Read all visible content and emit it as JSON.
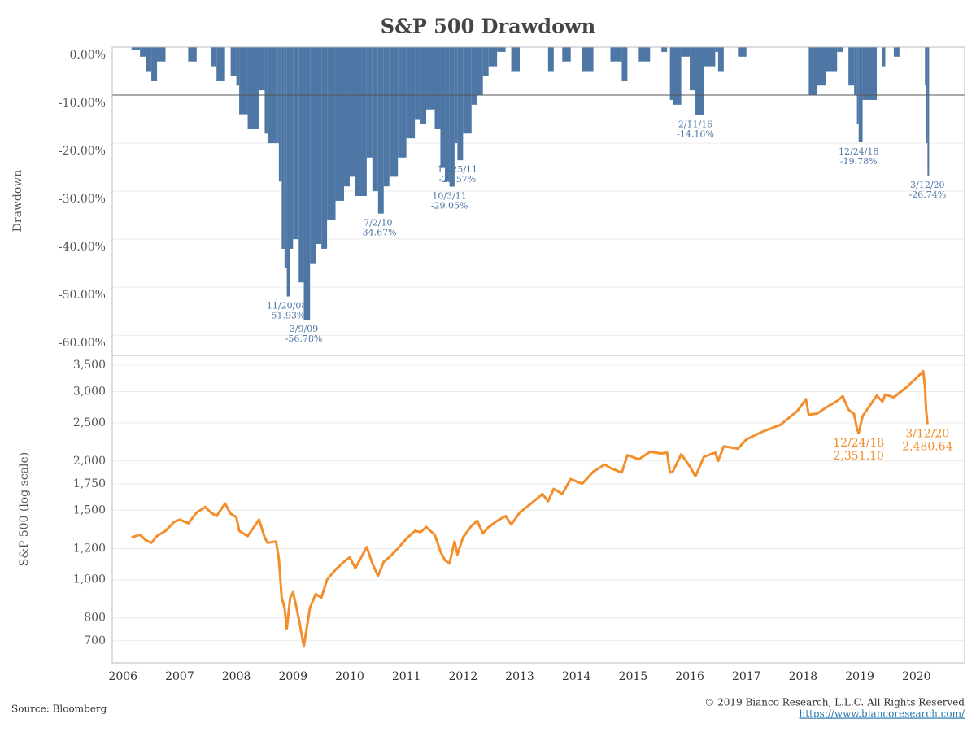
{
  "chart_data": [
    {
      "type": "bar",
      "title": "S&P 500 Drawdown",
      "y_label": "Drawdown",
      "color": "#4e77a5",
      "xlim": [
        2005.81,
        2020.85
      ],
      "ylim": [
        -64.2,
        0
      ],
      "reference_line": -10,
      "grid": true,
      "yticks": [
        {
          "value": 0,
          "label": "0.00%"
        },
        {
          "value": -10,
          "label": "-10.00%"
        },
        {
          "value": -20,
          "label": "-20.00%"
        },
        {
          "value": -30,
          "label": "-30.00%"
        },
        {
          "value": -40,
          "label": "-40.00%"
        },
        {
          "value": -50,
          "label": "-50.00%"
        },
        {
          "value": -60,
          "label": "-60.00%"
        }
      ],
      "x": [
        2006.15,
        2006.3,
        2006.4,
        2006.5,
        2006.6,
        2006.75,
        2006.9,
        2007.0,
        2007.15,
        2007.3,
        2007.45,
        2007.55,
        2007.65,
        2007.8,
        2007.9,
        2008.0,
        2008.05,
        2008.2,
        2008.4,
        2008.5,
        2008.55,
        2008.7,
        2008.75,
        2008.8,
        2008.85,
        2008.89,
        2008.95,
        2009.0,
        2009.1,
        2009.19,
        2009.3,
        2009.4,
        2009.5,
        2009.6,
        2009.75,
        2009.9,
        2010.0,
        2010.1,
        2010.3,
        2010.4,
        2010.5,
        2010.6,
        2010.7,
        2010.85,
        2011.0,
        2011.15,
        2011.25,
        2011.35,
        2011.5,
        2011.6,
        2011.68,
        2011.76,
        2011.85,
        2011.9,
        2012.0,
        2012.15,
        2012.25,
        2012.35,
        2012.45,
        2012.6,
        2012.75,
        2012.85,
        2013.0,
        2013.2,
        2013.4,
        2013.5,
        2013.6,
        2013.75,
        2013.9,
        2014.1,
        2014.3,
        2014.5,
        2014.6,
        2014.8,
        2014.9,
        2015.1,
        2015.3,
        2015.5,
        2015.6,
        2015.65,
        2015.7,
        2015.85,
        2016.0,
        2016.1,
        2016.25,
        2016.45,
        2016.5,
        2016.6,
        2016.85,
        2017.0,
        2017.3,
        2017.6,
        2017.9,
        2018.05,
        2018.1,
        2018.25,
        2018.4,
        2018.6,
        2018.7,
        2018.8,
        2018.9,
        2018.95,
        2018.98,
        2019.05,
        2019.3,
        2019.4,
        2019.45,
        2019.6,
        2019.7,
        2019.85,
        2020.0,
        2020.12,
        2020.15,
        2020.17,
        2020.195
      ],
      "values": [
        -0.5,
        -2,
        -5,
        -7,
        -3,
        0,
        0,
        0,
        -3,
        0,
        0,
        -4,
        -7,
        0,
        -6,
        -8,
        -14,
        -17,
        -9,
        -18,
        -20,
        -20,
        -28,
        -42,
        -46,
        -51.93,
        -42,
        -40,
        -49,
        -56.78,
        -45,
        -41,
        -42,
        -36,
        -32,
        -29,
        -27,
        -31,
        -23,
        -30,
        -34.67,
        -29,
        -27,
        -23,
        -19,
        -15,
        -16,
        -13,
        -17,
        -25,
        -28,
        -29.05,
        -20,
        -23.57,
        -18,
        -12,
        -10,
        -6,
        -4,
        -1,
        0,
        -5,
        0,
        0,
        0,
        -5,
        0,
        -3,
        0,
        -5,
        0,
        0,
        -3,
        -7,
        0,
        -3,
        0,
        -1,
        0,
        -11,
        -12,
        -2,
        -9,
        -14.16,
        -4,
        -1,
        -5,
        0,
        -2,
        0,
        0,
        0,
        0,
        0,
        -10,
        -8,
        -5,
        -1,
        0,
        -8,
        -10,
        -16,
        -19.78,
        -11,
        0,
        -4,
        0,
        -2,
        0,
        0,
        0,
        0,
        -8,
        -20,
        -26.74
      ],
      "annotations": [
        {
          "x": 2008.89,
          "y": -51.93,
          "date": "11/20/08",
          "label": "-51.93%"
        },
        {
          "x": 2009.19,
          "y": -56.78,
          "date": "3/9/09",
          "label": "-56.78%"
        },
        {
          "x": 2010.5,
          "y": -34.67,
          "date": "7/2/10",
          "label": "-34.67%"
        },
        {
          "x": 2011.76,
          "y": -29.05,
          "date": "10/3/11",
          "label": "-29.05%"
        },
        {
          "x": 2011.9,
          "y": -23.57,
          "date": "11/25/11",
          "label": "-23.57%"
        },
        {
          "x": 2016.1,
          "y": -14.16,
          "date": "2/11/16",
          "label": "-14.16%"
        },
        {
          "x": 2018.98,
          "y": -19.78,
          "date": "12/24/18",
          "label": "-19.78%"
        },
        {
          "x": 2020.195,
          "y": -26.74,
          "date": "3/12/20",
          "label": "-26.74%"
        }
      ]
    },
    {
      "type": "line",
      "y_label": "S&P 500 (log scale)",
      "color": "#f28e2b",
      "log_scale": true,
      "grid": true,
      "xlim": [
        2005.81,
        2020.85
      ],
      "ylim": [
        615,
        3706
      ],
      "xticks": [
        2006,
        2007,
        2008,
        2009,
        2010,
        2011,
        2012,
        2013,
        2014,
        2015,
        2016,
        2017,
        2018,
        2019,
        2020
      ],
      "yticks": [
        700,
        800,
        {
          "value": 1000,
          "label": "1,000"
        },
        {
          "value": 1200,
          "label": "1,200"
        },
        {
          "value": 1500,
          "label": "1,500"
        },
        {
          "value": 1750,
          "label": "1,750"
        },
        {
          "value": 2000,
          "label": "2,000"
        },
        {
          "value": 2500,
          "label": "2,500"
        },
        {
          "value": 3000,
          "label": "3,000"
        },
        {
          "value": 3500,
          "label": "3,500"
        }
      ],
      "x": [
        2006.15,
        2006.3,
        2006.4,
        2006.5,
        2006.6,
        2006.75,
        2006.9,
        2007.0,
        2007.15,
        2007.3,
        2007.45,
        2007.55,
        2007.65,
        2007.8,
        2007.9,
        2008.0,
        2008.05,
        2008.2,
        2008.4,
        2008.5,
        2008.55,
        2008.7,
        2008.75,
        2008.8,
        2008.85,
        2008.89,
        2008.95,
        2009.0,
        2009.1,
        2009.19,
        2009.3,
        2009.4,
        2009.5,
        2009.6,
        2009.75,
        2009.9,
        2010.0,
        2010.1,
        2010.3,
        2010.4,
        2010.5,
        2010.6,
        2010.7,
        2010.85,
        2011.0,
        2011.15,
        2011.25,
        2011.35,
        2011.5,
        2011.6,
        2011.68,
        2011.76,
        2011.85,
        2011.9,
        2012.0,
        2012.15,
        2012.25,
        2012.35,
        2012.45,
        2012.6,
        2012.75,
        2012.85,
        2013.0,
        2013.2,
        2013.4,
        2013.5,
        2013.6,
        2013.75,
        2013.9,
        2014.1,
        2014.3,
        2014.5,
        2014.6,
        2014.8,
        2014.9,
        2015.1,
        2015.3,
        2015.5,
        2015.6,
        2015.65,
        2015.7,
        2015.85,
        2016.0,
        2016.1,
        2016.25,
        2016.45,
        2016.5,
        2016.6,
        2016.85,
        2017.0,
        2017.3,
        2017.6,
        2017.9,
        2018.05,
        2018.1,
        2018.25,
        2018.4,
        2018.6,
        2018.7,
        2018.8,
        2018.9,
        2018.95,
        2018.98,
        2019.05,
        2019.3,
        2019.4,
        2019.45,
        2019.6,
        2019.7,
        2019.85,
        2020.0,
        2020.12,
        2020.15,
        2020.17,
        2020.195
      ],
      "values": [
        1280,
        1300,
        1260,
        1240,
        1290,
        1330,
        1400,
        1420,
        1390,
        1480,
        1530,
        1480,
        1450,
        1560,
        1470,
        1440,
        1330,
        1290,
        1420,
        1280,
        1240,
        1250,
        1130,
        900,
        850,
        752,
        900,
        930,
        800,
        677,
        850,
        920,
        900,
        1000,
        1060,
        1110,
        1140,
        1070,
        1210,
        1100,
        1022,
        1110,
        1140,
        1200,
        1270,
        1330,
        1320,
        1360,
        1300,
        1180,
        1120,
        1099,
        1250,
        1158,
        1280,
        1370,
        1410,
        1310,
        1360,
        1410,
        1450,
        1380,
        1480,
        1560,
        1650,
        1580,
        1700,
        1650,
        1800,
        1750,
        1880,
        1960,
        1920,
        1870,
        2070,
        2020,
        2110,
        2090,
        2100,
        1870,
        1880,
        2080,
        1940,
        1829,
        2050,
        2100,
        2000,
        2180,
        2150,
        2270,
        2380,
        2470,
        2680,
        2870,
        2620,
        2640,
        2730,
        2840,
        2920,
        2700,
        2630,
        2420,
        2351.1,
        2600,
        2930,
        2830,
        2950,
        2900,
        2980,
        3100,
        3250,
        3380,
        3100,
        2700,
        2480.64
      ],
      "annotations": [
        {
          "x": 2018.98,
          "y": 2351.1,
          "date": "12/24/18",
          "label": "2,351.10"
        },
        {
          "x": 2020.195,
          "y": 2480.64,
          "date": "3/12/20",
          "label": "2,480.64"
        }
      ]
    }
  ],
  "footer": {
    "source": "Source: Bloomberg",
    "copyright": "© 2019 Bianco Research, L.L.C. All Rights Reserved",
    "url": "https://www.biancoresearch.com/"
  }
}
